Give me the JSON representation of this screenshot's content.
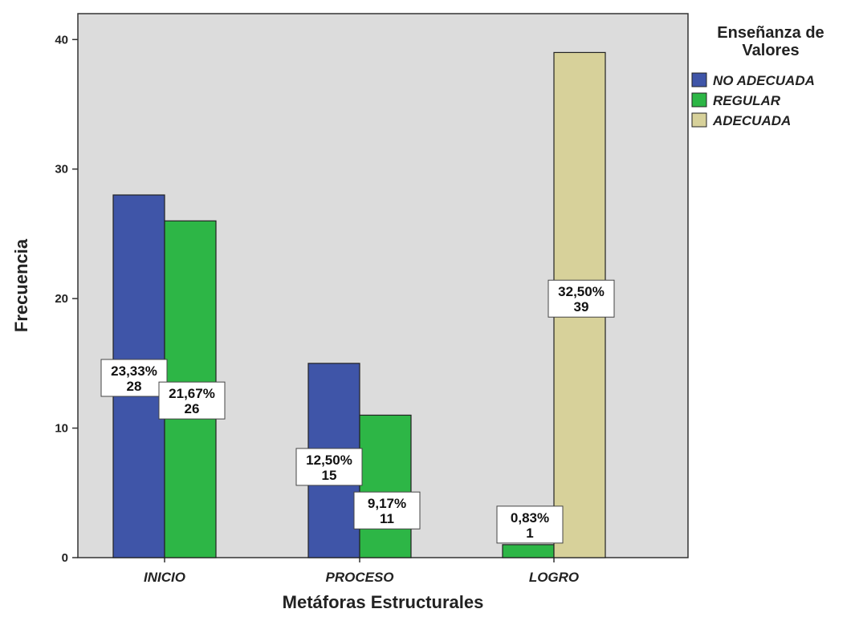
{
  "chart_data": {
    "type": "bar",
    "xlabel": "Metáforas Estructurales",
    "ylabel": "Frecuencia",
    "ylim": [
      0,
      42
    ],
    "yticks": [
      0,
      10,
      20,
      30,
      40
    ],
    "categories": [
      "INICIO",
      "PROCESO",
      "LOGRO"
    ],
    "legend": {
      "title_lines": [
        "Enseñanza de",
        "Valores"
      ],
      "placement": "right"
    },
    "grid": false,
    "series": [
      {
        "name": "NO ADECUADA",
        "color": "#3f55a8",
        "values": [
          28,
          15,
          null
        ],
        "labels": [
          [
            "23,33%",
            "28"
          ],
          [
            "12,50%",
            "15"
          ],
          null
        ]
      },
      {
        "name": "REGULAR",
        "color": "#2db646",
        "values": [
          26,
          11,
          1
        ],
        "labels": [
          [
            "21,67%",
            "26"
          ],
          [
            "9,17%",
            "11"
          ],
          [
            "0,83%",
            "1"
          ]
        ]
      },
      {
        "name": "ADECUADA",
        "color": "#d7d19a",
        "values": [
          null,
          null,
          39
        ],
        "labels": [
          null,
          null,
          [
            "32,50%",
            "39"
          ]
        ]
      }
    ],
    "plot_background": "#dcdcdc"
  }
}
